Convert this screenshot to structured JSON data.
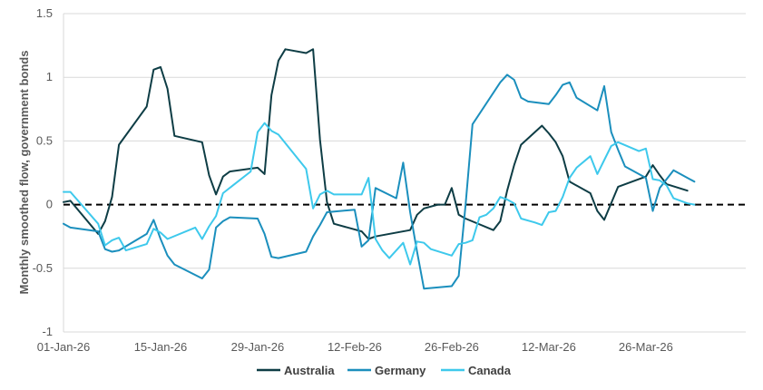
{
  "chart_data": {
    "type": "line",
    "title": "",
    "xlabel": "",
    "ylabel": "Monthly smoothed flow, government bonds",
    "ylim": [
      -1,
      1.5
    ],
    "yticks": [
      -1,
      -0.5,
      0,
      0.5,
      1,
      1.5
    ],
    "ytick_labels": [
      "-1",
      "-0.5",
      "0",
      "0.5",
      "1",
      "1.5"
    ],
    "xlim": [
      0,
      88
    ],
    "xticks": [
      0,
      14,
      28,
      42,
      56,
      70,
      84
    ],
    "xtick_labels": [
      "01-Jan-26",
      "15-Jan-26",
      "29-Jan-26",
      "12-Feb-26",
      "26-Feb-26",
      "12-Mar-26",
      "26-Mar-26"
    ],
    "zero_line": true,
    "grid": true,
    "legend": "bottom",
    "series": [
      {
        "name": "Australia",
        "color": "#0e3d45",
        "points": [
          [
            0,
            0.02
          ],
          [
            1,
            0.03
          ],
          [
            5,
            -0.23
          ],
          [
            6,
            -0.13
          ],
          [
            7,
            0.06
          ],
          [
            8,
            0.47
          ],
          [
            12,
            0.77
          ],
          [
            13,
            1.06
          ],
          [
            14,
            1.08
          ],
          [
            15,
            0.91
          ],
          [
            16,
            0.54
          ],
          [
            20,
            0.49
          ],
          [
            21,
            0.23
          ],
          [
            22,
            0.08
          ],
          [
            23,
            0.22
          ],
          [
            24,
            0.26
          ],
          [
            28,
            0.29
          ],
          [
            29,
            0.24
          ],
          [
            30,
            0.86
          ],
          [
            31,
            1.13
          ],
          [
            32,
            1.22
          ],
          [
            35,
            1.19
          ],
          [
            36,
            1.22
          ],
          [
            37,
            0.51
          ],
          [
            38,
            0.02
          ],
          [
            39,
            -0.15
          ],
          [
            43,
            -0.21
          ],
          [
            44,
            -0.27
          ],
          [
            45,
            -0.25
          ],
          [
            50,
            -0.2
          ],
          [
            51,
            -0.08
          ],
          [
            52,
            -0.03
          ],
          [
            54,
            0.0
          ],
          [
            55,
            0.0
          ],
          [
            56,
            0.13
          ],
          [
            57,
            -0.08
          ],
          [
            58,
            -0.11
          ],
          [
            62,
            -0.2
          ],
          [
            63,
            -0.13
          ],
          [
            64,
            0.11
          ],
          [
            65,
            0.31
          ],
          [
            66,
            0.47
          ],
          [
            69,
            0.62
          ],
          [
            70,
            0.56
          ],
          [
            71,
            0.49
          ],
          [
            72,
            0.38
          ],
          [
            73,
            0.18
          ],
          [
            76,
            0.09
          ],
          [
            77,
            -0.05
          ],
          [
            78,
            -0.12
          ],
          [
            80,
            0.14
          ],
          [
            84,
            0.22
          ],
          [
            85,
            0.31
          ],
          [
            86,
            0.23
          ],
          [
            87,
            0.16
          ],
          [
            90,
            0.11
          ]
        ]
      },
      {
        "name": "Germany",
        "color": "#1b8fbd",
        "points": [
          [
            0,
            -0.15
          ],
          [
            1,
            -0.18
          ],
          [
            5,
            -0.21
          ],
          [
            6,
            -0.35
          ],
          [
            7,
            -0.37
          ],
          [
            8,
            -0.36
          ],
          [
            12,
            -0.23
          ],
          [
            13,
            -0.12
          ],
          [
            14,
            -0.27
          ],
          [
            15,
            -0.4
          ],
          [
            16,
            -0.47
          ],
          [
            20,
            -0.58
          ],
          [
            21,
            -0.51
          ],
          [
            22,
            -0.18
          ],
          [
            23,
            -0.13
          ],
          [
            24,
            -0.1
          ],
          [
            28,
            -0.11
          ],
          [
            29,
            -0.23
          ],
          [
            30,
            -0.41
          ],
          [
            31,
            -0.42
          ],
          [
            35,
            -0.37
          ],
          [
            36,
            -0.25
          ],
          [
            37,
            -0.16
          ],
          [
            38,
            -0.06
          ],
          [
            42,
            -0.04
          ],
          [
            43,
            -0.33
          ],
          [
            44,
            -0.28
          ],
          [
            45,
            0.13
          ],
          [
            48,
            0.05
          ],
          [
            49,
            0.33
          ],
          [
            50,
            -0.06
          ],
          [
            51,
            -0.37
          ],
          [
            52,
            -0.66
          ],
          [
            56,
            -0.64
          ],
          [
            57,
            -0.56
          ],
          [
            58,
            0.0
          ],
          [
            59,
            0.63
          ],
          [
            63,
            0.96
          ],
          [
            64,
            1.02
          ],
          [
            65,
            0.98
          ],
          [
            66,
            0.84
          ],
          [
            67,
            0.81
          ],
          [
            70,
            0.79
          ],
          [
            71,
            0.86
          ],
          [
            72,
            0.94
          ],
          [
            73,
            0.96
          ],
          [
            74,
            0.84
          ],
          [
            77,
            0.74
          ],
          [
            78,
            0.93
          ],
          [
            79,
            0.57
          ],
          [
            80,
            0.43
          ],
          [
            81,
            0.3
          ],
          [
            84,
            0.21
          ],
          [
            85,
            -0.05
          ],
          [
            86,
            0.13
          ],
          [
            87,
            0.2
          ],
          [
            88,
            0.27
          ],
          [
            90,
            0.21
          ],
          [
            91,
            0.18
          ]
        ]
      },
      {
        "name": "Canada",
        "color": "#3ec9ec",
        "points": [
          [
            0,
            0.1
          ],
          [
            1,
            0.1
          ],
          [
            5,
            -0.15
          ],
          [
            6,
            -0.32
          ],
          [
            7,
            -0.28
          ],
          [
            8,
            -0.26
          ],
          [
            9,
            -0.36
          ],
          [
            12,
            -0.31
          ],
          [
            13,
            -0.19
          ],
          [
            14,
            -0.22
          ],
          [
            15,
            -0.27
          ],
          [
            19,
            -0.18
          ],
          [
            20,
            -0.27
          ],
          [
            21,
            -0.17
          ],
          [
            22,
            -0.09
          ],
          [
            23,
            0.09
          ],
          [
            27,
            0.26
          ],
          [
            28,
            0.57
          ],
          [
            29,
            0.64
          ],
          [
            30,
            0.58
          ],
          [
            31,
            0.55
          ],
          [
            35,
            0.28
          ],
          [
            36,
            -0.03
          ],
          [
            37,
            0.08
          ],
          [
            38,
            0.11
          ],
          [
            39,
            0.08
          ],
          [
            43,
            0.08
          ],
          [
            44,
            0.21
          ],
          [
            45,
            -0.27
          ],
          [
            46,
            -0.36
          ],
          [
            47,
            -0.42
          ],
          [
            49,
            -0.3
          ],
          [
            50,
            -0.47
          ],
          [
            51,
            -0.29
          ],
          [
            52,
            -0.3
          ],
          [
            53,
            -0.35
          ],
          [
            56,
            -0.4
          ],
          [
            57,
            -0.31
          ],
          [
            58,
            -0.3
          ],
          [
            59,
            -0.28
          ],
          [
            60,
            -0.1
          ],
          [
            61,
            -0.08
          ],
          [
            62,
            -0.03
          ],
          [
            63,
            0.06
          ],
          [
            64,
            0.04
          ],
          [
            65,
            0.01
          ],
          [
            66,
            -0.11
          ],
          [
            68,
            -0.14
          ],
          [
            69,
            -0.16
          ],
          [
            70,
            -0.06
          ],
          [
            71,
            -0.05
          ],
          [
            72,
            0.06
          ],
          [
            73,
            0.21
          ],
          [
            74,
            0.29
          ],
          [
            76,
            0.38
          ],
          [
            77,
            0.24
          ],
          [
            78,
            0.35
          ],
          [
            79,
            0.46
          ],
          [
            80,
            0.49
          ],
          [
            83,
            0.42
          ],
          [
            84,
            0.44
          ],
          [
            85,
            0.2
          ],
          [
            86,
            0.19
          ],
          [
            87,
            0.15
          ],
          [
            88,
            0.05
          ],
          [
            90,
            0.01
          ],
          [
            91,
            0.0
          ]
        ]
      }
    ]
  }
}
